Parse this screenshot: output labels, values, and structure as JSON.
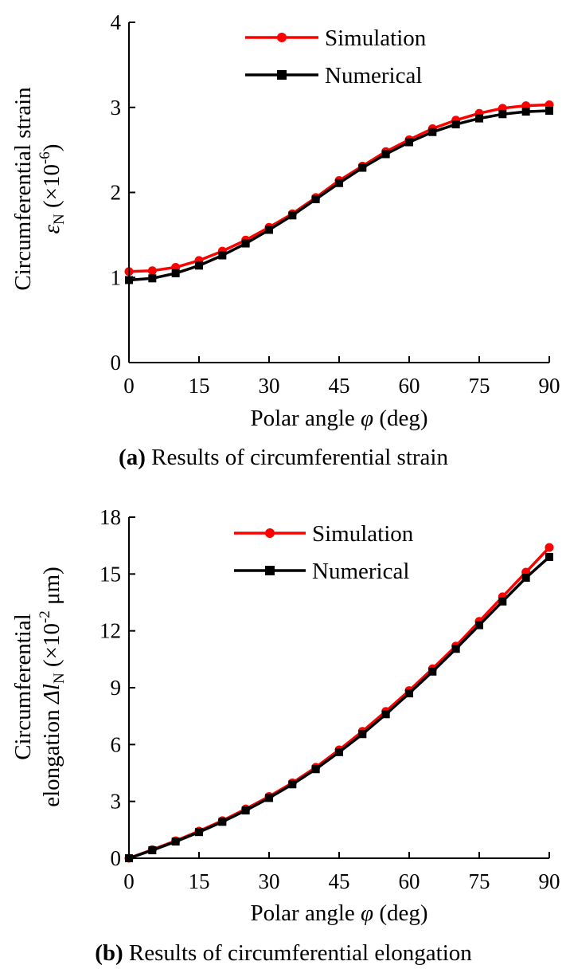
{
  "chart_data": [
    {
      "type": "line",
      "caption_bold": "(a)",
      "caption_rest": " Results of circumferential strain",
      "xlabel_main": "Polar angle ",
      "xlabel_symbol": "φ",
      "xlabel_unit": " (deg)",
      "ylabel_line1": "Circumferential strain",
      "ylabel_symbol": "ε",
      "ylabel_sub": "N",
      "ylabel_unit_pre": " (×10",
      "ylabel_unit_sup": "-6",
      "ylabel_unit_post": ")",
      "xlim": [
        0,
        90
      ],
      "ylim": [
        0,
        4
      ],
      "xticks": [
        "0",
        "15",
        "30",
        "45",
        "60",
        "75",
        "90"
      ],
      "yticks": [
        "0",
        "1",
        "2",
        "3",
        "4"
      ],
      "legend_placement": "top-right",
      "x": [
        0,
        5,
        10,
        15,
        20,
        25,
        30,
        35,
        40,
        45,
        50,
        55,
        60,
        65,
        70,
        75,
        80,
        85,
        90
      ],
      "series": [
        {
          "name": "Simulation",
          "color": "#ff0000",
          "marker": "circle",
          "values": [
            1.07,
            1.08,
            1.12,
            1.2,
            1.31,
            1.44,
            1.59,
            1.75,
            1.94,
            2.14,
            2.31,
            2.48,
            2.62,
            2.75,
            2.85,
            2.93,
            2.99,
            3.02,
            3.03
          ]
        },
        {
          "name": "Numerical",
          "color": "#000000",
          "marker": "square",
          "values": [
            0.97,
            0.99,
            1.05,
            1.14,
            1.26,
            1.4,
            1.56,
            1.73,
            1.92,
            2.11,
            2.29,
            2.45,
            2.59,
            2.71,
            2.8,
            2.87,
            2.92,
            2.95,
            2.96
          ]
        }
      ]
    },
    {
      "type": "line",
      "caption_bold": "(b)",
      "caption_rest": " Results of circumferential elongation",
      "xlabel_main": "Polar angle ",
      "xlabel_symbol": "φ",
      "xlabel_unit": " (deg)",
      "ylabel_line1": "Circumferential",
      "ylabel_pre": "elongation ",
      "ylabel_symbol": "Δl",
      "ylabel_sub": "N",
      "ylabel_unit_pre": " (×10",
      "ylabel_unit_sup": "-2",
      "ylabel_unit_post": " μm)",
      "xlim": [
        0,
        90
      ],
      "ylim": [
        0,
        18
      ],
      "xticks": [
        "0",
        "15",
        "30",
        "45",
        "60",
        "75",
        "90"
      ],
      "yticks": [
        "0",
        "3",
        "6",
        "9",
        "12",
        "15",
        "18"
      ],
      "legend_placement": "top-left",
      "x": [
        0,
        5,
        10,
        15,
        20,
        25,
        30,
        35,
        40,
        45,
        50,
        55,
        60,
        65,
        70,
        75,
        80,
        85,
        90
      ],
      "series": [
        {
          "name": "Simulation",
          "color": "#ff0000",
          "marker": "circle",
          "values": [
            0.0,
            0.45,
            0.92,
            1.43,
            1.98,
            2.6,
            3.26,
            3.98,
            4.8,
            5.72,
            6.7,
            7.75,
            8.85,
            10.0,
            11.2,
            12.5,
            13.8,
            15.1,
            16.4
          ]
        },
        {
          "name": "Numerical",
          "color": "#000000",
          "marker": "square",
          "values": [
            0.0,
            0.42,
            0.88,
            1.38,
            1.92,
            2.52,
            3.18,
            3.9,
            4.7,
            5.6,
            6.55,
            7.6,
            8.7,
            9.85,
            11.05,
            12.3,
            13.55,
            14.8,
            15.9
          ]
        }
      ]
    }
  ]
}
